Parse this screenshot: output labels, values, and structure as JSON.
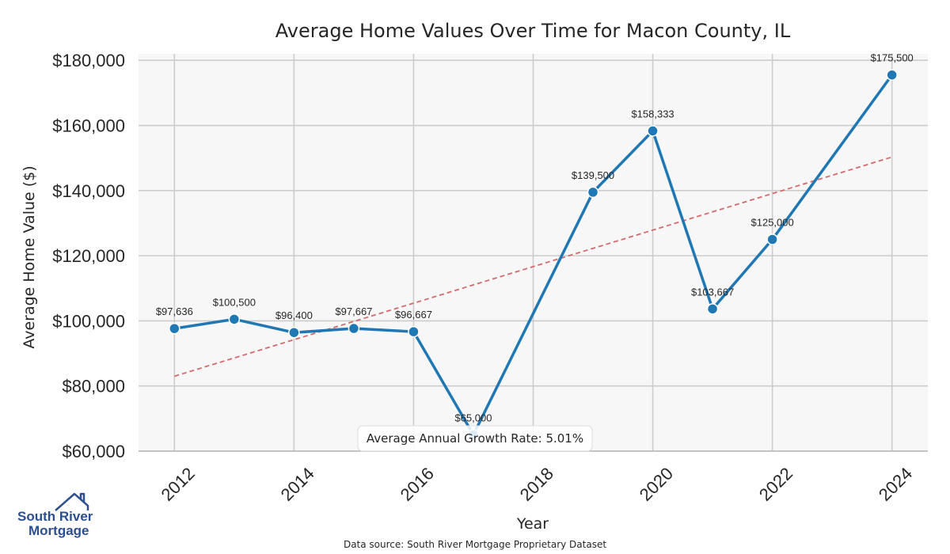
{
  "chart_data": {
    "type": "line",
    "title": "Average Home Values Over Time for Macon County, IL",
    "xlabel": "Year",
    "ylabel": "Average Home Value ($)",
    "xlim": [
      2011.4,
      2024.6
    ],
    "ylim": [
      60000,
      182000
    ],
    "xticks": [
      2012,
      2014,
      2016,
      2018,
      2020,
      2022,
      2024
    ],
    "yticks": [
      60000,
      80000,
      100000,
      120000,
      140000,
      160000,
      180000
    ],
    "ytick_labels": [
      "$60,000",
      "$80,000",
      "$100,000",
      "$120,000",
      "$140,000",
      "$160,000",
      "$180,000"
    ],
    "grid": true,
    "series": [
      {
        "x": [
          2012,
          2013,
          2014,
          2015,
          2016,
          2017,
          2019,
          2020,
          2021,
          2022,
          2024
        ],
        "values": [
          97636,
          100500,
          96400,
          97667,
          96667,
          65000,
          139500,
          158333,
          103667,
          125000,
          175500
        ],
        "labels": [
          "$97,636",
          "$100,500",
          "$96,400",
          "$97,667",
          "$96,667",
          "$65,000",
          "$139,500",
          "$158,333",
          "$103,667",
          "$125,000",
          "$175,500"
        ],
        "color": "#1f77b4"
      }
    ],
    "trendline": {
      "x": [
        2012,
        2024
      ],
      "values": [
        83000,
        150300
      ],
      "color": "#d46a6a",
      "style": "dashed"
    },
    "annotation": "Average Annual Growth Rate: 5.01%",
    "source": "Data source: South River Mortgage Proprietary Dataset"
  },
  "logo": {
    "line1": "South River",
    "line2": "Mortgage",
    "color": "#2b4f8f"
  },
  "colors": {
    "plot_bg": "#f7f7f7",
    "grid": "#cccccc",
    "line": "#1f77b4",
    "trend": "#d46a6a"
  }
}
